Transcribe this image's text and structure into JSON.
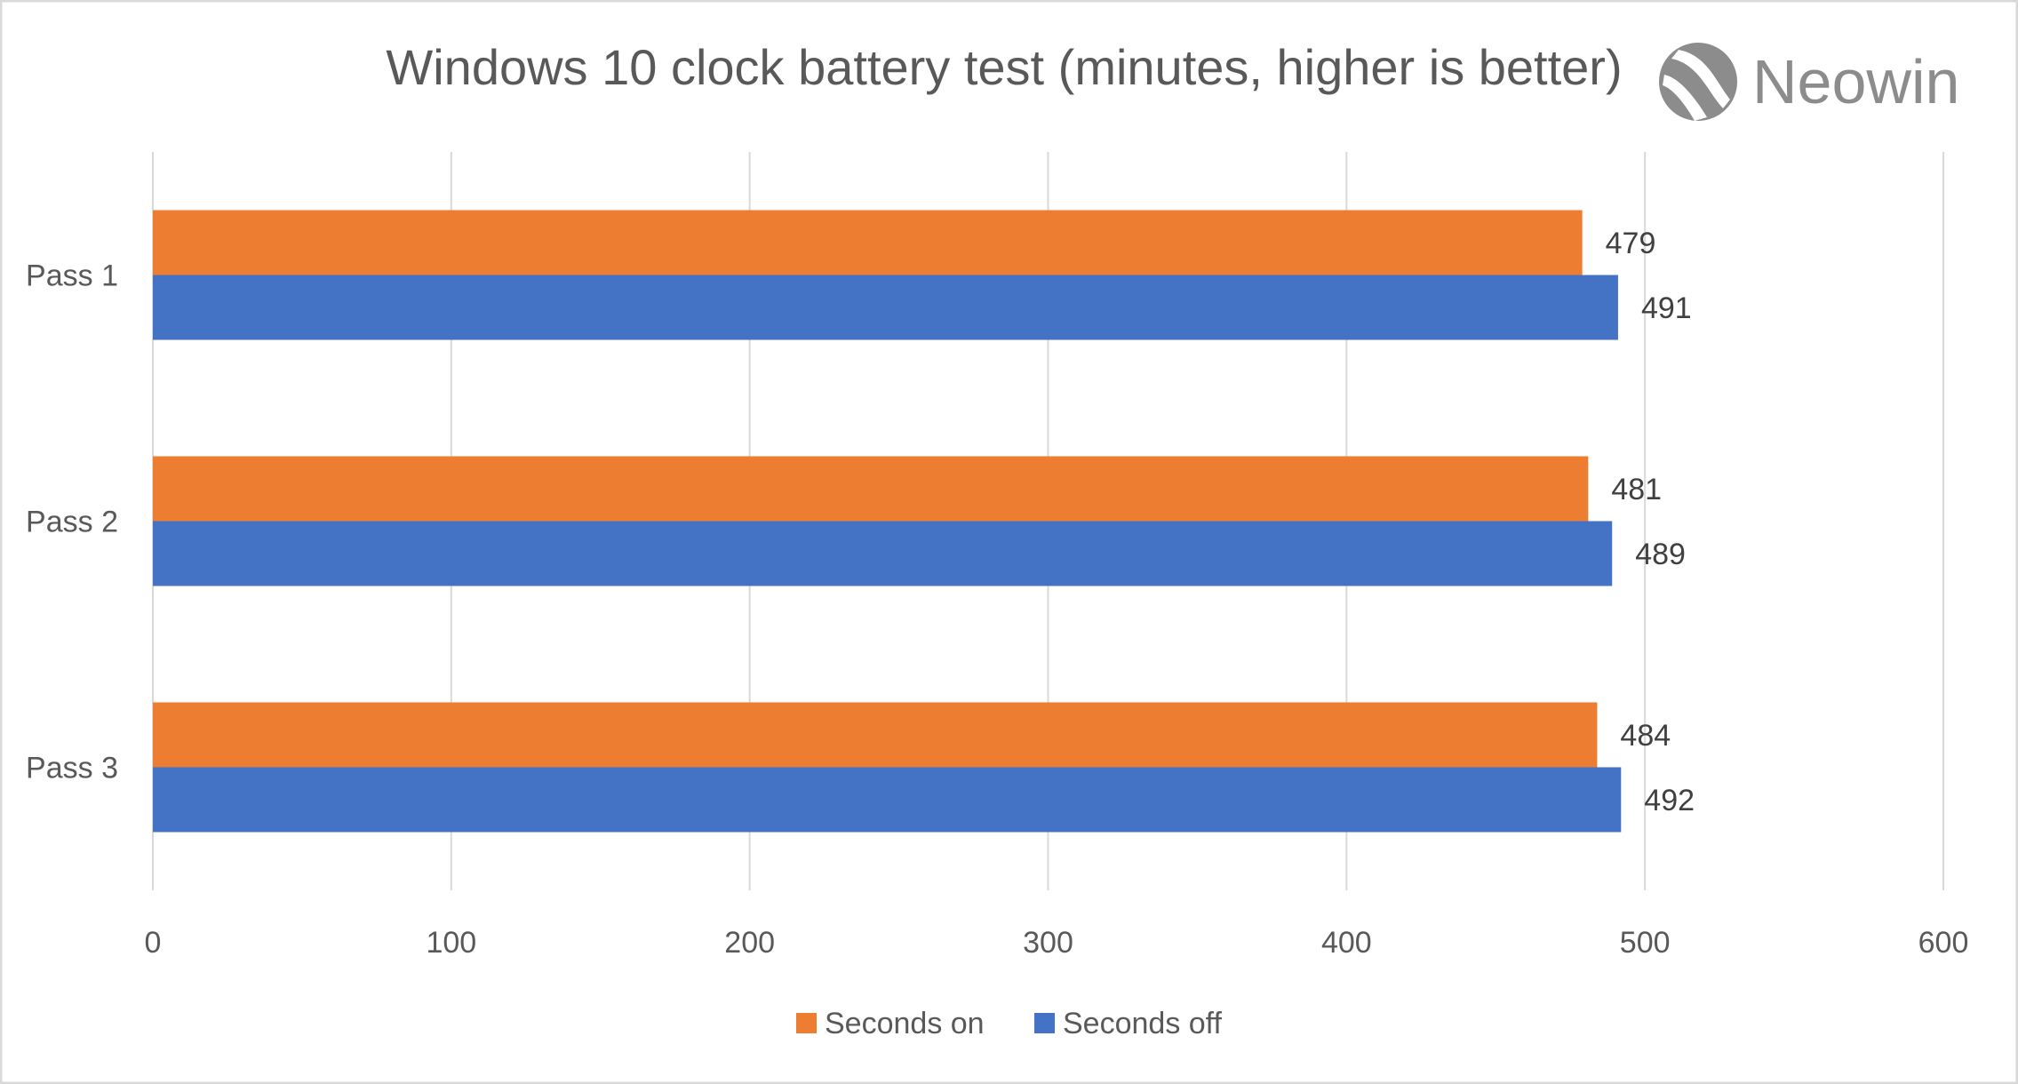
{
  "chart_data": {
    "type": "bar",
    "orientation": "horizontal",
    "title": "Windows 10 clock battery test (minutes, higher is better)",
    "categories": [
      "Pass 1",
      "Pass 2",
      "Pass 3"
    ],
    "series": [
      {
        "name": "Seconds on",
        "color": "#ED7D31",
        "values": [
          479,
          481,
          484
        ]
      },
      {
        "name": "Seconds off",
        "color": "#4472C4",
        "values": [
          491,
          489,
          492
        ]
      }
    ],
    "xlim": [
      0,
      600
    ],
    "xticks": [
      0,
      100,
      200,
      300,
      400,
      500,
      600
    ],
    "grid": true,
    "legend": "bottom",
    "data_labels": true
  },
  "watermark": {
    "text": "Neowin",
    "icon": "neowin-logo-icon"
  }
}
